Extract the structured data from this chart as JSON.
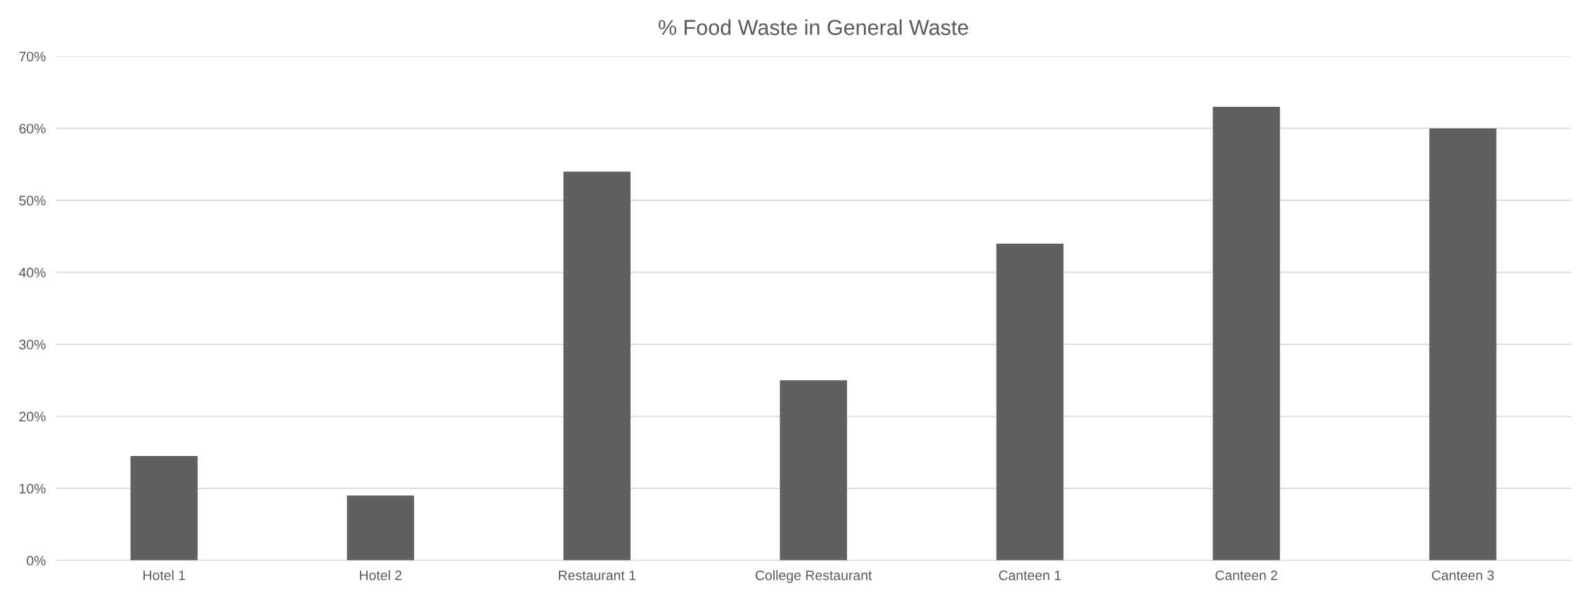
{
  "chart_data": {
    "type": "bar",
    "title": "% Food Waste in General Waste",
    "categories": [
      "Hotel 1",
      "Hotel 2",
      "Restaurant 1",
      "College Restaurant",
      "Canteen 1",
      "Canteen 2",
      "Canteen 3"
    ],
    "values": [
      14.5,
      9,
      54,
      25,
      44,
      63,
      60
    ],
    "color": "#606060",
    "ylim": [
      0,
      70
    ],
    "yticks": [
      {
        "value": 0,
        "label": "0%"
      },
      {
        "value": 10,
        "label": "10%"
      },
      {
        "value": 20,
        "label": "20%"
      },
      {
        "value": 30,
        "label": "30%"
      },
      {
        "value": 40,
        "label": "40%"
      },
      {
        "value": 50,
        "label": "50%"
      },
      {
        "value": 60,
        "label": "60%"
      },
      {
        "value": 70,
        "label": "70%"
      }
    ],
    "grid": "y"
  }
}
